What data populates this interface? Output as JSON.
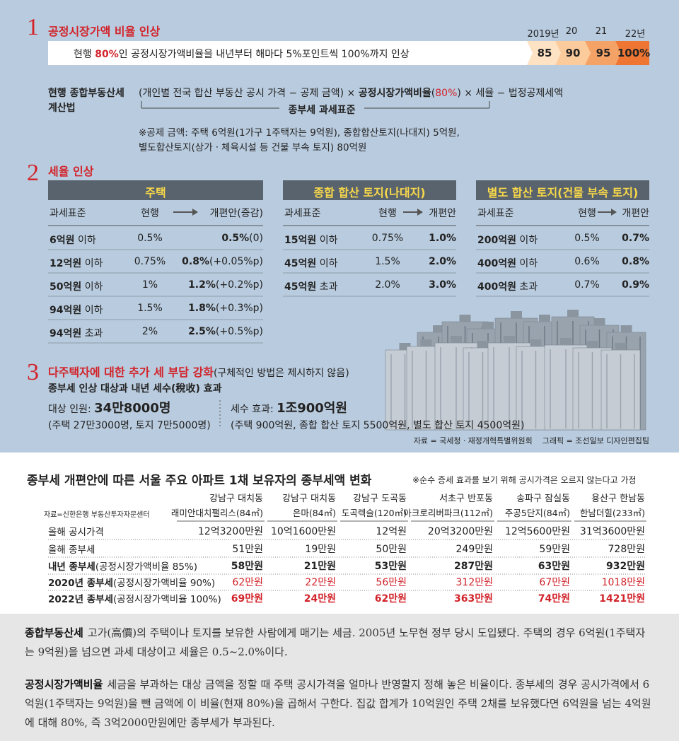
{
  "section1": {
    "number": "1",
    "title": "공정시장가액 비율 인상",
    "bar_text": [
      "현행 ",
      "80%",
      "인 공정시장가액비율을 내년부터 해마다 5%포인트씩 100%까지 인상"
    ],
    "years": [
      "2019년",
      "20",
      "21",
      "22년"
    ],
    "rates": [
      "85",
      "90",
      "95",
      "100%"
    ],
    "formula_label": [
      "현행 종합부동산세",
      "계산법"
    ],
    "formula": [
      "(개인별 전국 합산 부동산 공시 가격 − 공제 금액) × ",
      "공정시장가액비율",
      "(",
      "80%",
      ") × 세율 − 법정공제세액"
    ],
    "bracket_label": "종부세 과세표준",
    "notes": [
      "※공제 금액: 주택 6억원(1가구 1주택자는 9억원), 종합합산토지(나대지) 5억원,",
      "별도합산토지(상가ㆍ체육시설 등 건물 부속 토지) 80억원"
    ]
  },
  "section2": {
    "number": "2",
    "title": "세율 인상",
    "tables": [
      {
        "title": "주택",
        "headers": [
          "과세표준",
          "현행",
          "개편안(증감)"
        ],
        "rows": [
          [
            "6억원",
            " 이하",
            "0.5%",
            "0.5%",
            "(0)"
          ],
          [
            "12억원",
            " 이하",
            "0.75%",
            "0.8%",
            "(+0.05%p)"
          ],
          [
            "50억원",
            " 이하",
            "1%",
            "1.2%",
            "(+0.2%p)"
          ],
          [
            "94억원",
            " 이하",
            "1.5%",
            "1.8%",
            "(+0.3%p)"
          ],
          [
            "94억원",
            " 초과",
            "2%",
            "2.5%",
            "(+0.5%p)"
          ]
        ]
      },
      {
        "title": "종합 합산 토지(나대지)",
        "headers": [
          "과세표준",
          "현행",
          "개편안"
        ],
        "rows": [
          [
            "15억원",
            " 이하",
            "0.75%",
            "1.0%"
          ],
          [
            "45억원",
            " 이하",
            "1.5%",
            "2.0%"
          ],
          [
            "45억원",
            " 초과",
            "2.0%",
            "3.0%"
          ]
        ]
      },
      {
        "title": "별도 합산 토지(건물 부속 토지)",
        "headers": [
          "과세표준",
          "현행",
          "개편안"
        ],
        "rows": [
          [
            "200억원",
            " 이하",
            "0.5%",
            "0.7%"
          ],
          [
            "400억원",
            " 이하",
            "0.6%",
            "0.8%"
          ],
          [
            "400억원",
            " 초과",
            "0.7%",
            "0.9%"
          ]
        ]
      }
    ]
  },
  "section3": {
    "number": "3",
    "title": "다주택자에 대한 추가 세 부담 강화",
    "title_note": "(구체적인 방법은 제시하지 않음)",
    "subtitle": "종부세 인상 대상과 내년 세수(稅收) 효과",
    "people": {
      "label": "대상 인원: ",
      "value": "34만8000명",
      "detail": "(주택 27만3000명, 토지 7만5000명)"
    },
    "revenue": {
      "label": "세수 효과: ",
      "value": "1조900억원",
      "detail": "(주택 900억원, 종합 합산 토지 5500억원, 별도 합산 토지 4500억원)"
    },
    "sources": [
      "자료 = 국세청ㆍ재정개혁특별위원회",
      "그래픽 = 조선일보 디자인편집팀"
    ]
  },
  "table": {
    "title": "종부세 개편안에 따른 서울 주요 아파트 1채 보유자의 종부세액 변화",
    "note": "※순수 증세 효과를 보기 위해 공시가격은 오르지 않는다고 가정",
    "source": "자료=신한은행 부동산투자자문센터",
    "columns": [
      {
        "district": "강남구 대치동",
        "name": "래미안대치팰리스(84㎡)"
      },
      {
        "district": "강남구 대치동",
        "name": "은마(84㎡)"
      },
      {
        "district": "강남구 도곡동",
        "name": "도곡렉슬(120㎡)"
      },
      {
        "district": "서초구 반포동",
        "name": "아크로리버파크(112㎡)"
      },
      {
        "district": "송파구 잠실동",
        "name": "주공5단지(84㎡)"
      },
      {
        "district": "용산구 한남동",
        "name": "한남더힐(233㎡)"
      }
    ],
    "rows": [
      {
        "label": [
          "올해 공시가격"
        ],
        "cells": [
          "12억3200만원",
          "10억1600만원",
          "12억원",
          "20억3200만원",
          "12억5600만원",
          "31억3600만원"
        ]
      },
      {
        "label": [
          "올해 종부세"
        ],
        "cells": [
          "51만원",
          "19만원",
          "50만원",
          "249만원",
          "59만원",
          "728만원"
        ]
      },
      {
        "label": [
          "내년 종부세",
          "(공정시장가액비율 85%)"
        ],
        "cells": [
          "58만원",
          "21만원",
          "53만원",
          "287만원",
          "63만원",
          "932만원"
        ]
      },
      {
        "label": [
          "2020년 종부세",
          "(공정시장가액비율 90%)"
        ],
        "cells": [
          "62만원",
          "22만원",
          "56만원",
          "312만원",
          "67만원",
          "1018만원"
        ]
      },
      {
        "label": [
          "2022년 종부세",
          "(공정시장가액비율 100%)"
        ],
        "cells": [
          "69만원",
          "24만원",
          "62만원",
          "363만원",
          "74만원",
          "1421만원"
        ]
      }
    ]
  },
  "definitions": [
    {
      "term": "종합부동산세",
      "text": "고가(高價)의 주택이나 토지를 보유한 사람에게 매기는 세금. 2005년 노무현 정부 당시 도입됐다. 주택의 경우 6억원(1주택자는 9억원)을 넘으면 과세 대상이고 세율은 0.5~2.0%이다."
    },
    {
      "term": "공정시장가액비율",
      "text": "세금을 부과하는 대상 금액을 정할 때 주택 공시가격을 얼마나 반영할지 정해 놓은 비율이다. 종부세의 경우 공시가격에서 6억원(1주택자는 9억원)을 뺀 금액에 이 비율(현재 80%)을 곱해서 구한다. 집값 합계가 10억원인 주택 2채를 보유했다면 6억원을 넘는 4억원에 대해 80%, 즉 3억2000만원에만 종부세가 부과된다."
    }
  ]
}
